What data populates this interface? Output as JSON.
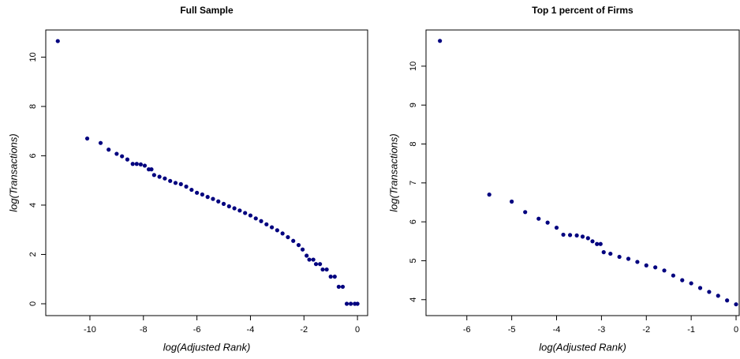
{
  "chart_data": [
    {
      "type": "scatter",
      "title": "Full Sample",
      "xlabel": "log(Adjusted Rank)",
      "ylabel": "log(Transactions)",
      "color": "#00007f",
      "xlim": [
        -11.65,
        0.38
      ],
      "ylim": [
        -0.48,
        11.1
      ],
      "xticks": [
        -10,
        -8,
        -6,
        -4,
        -2,
        0
      ],
      "yticks": [
        0,
        2,
        4,
        6,
        8,
        10
      ],
      "x": [
        -11.2,
        -10.1,
        -9.6,
        -9.3,
        -9.0,
        -8.8,
        -8.6,
        -8.4,
        -8.25,
        -8.1,
        -7.95,
        -7.8,
        -7.7,
        -7.6,
        -7.4,
        -7.2,
        -7.0,
        -6.8,
        -6.6,
        -6.4,
        -6.2,
        -6.0,
        -5.8,
        -5.6,
        -5.4,
        -5.2,
        -5.0,
        -4.8,
        -4.6,
        -4.4,
        -4.2,
        -4.0,
        -3.8,
        -3.6,
        -3.4,
        -3.2,
        -3.0,
        -2.8,
        -2.6,
        -2.4,
        -2.2,
        -2.05,
        -1.9,
        -1.8,
        -1.65,
        -1.55,
        -1.4,
        -1.3,
        -1.15,
        -1.0,
        -0.85,
        -0.7,
        -0.55,
        -0.4,
        -0.25,
        -0.1,
        0
      ],
      "y": [
        10.65,
        6.7,
        6.52,
        6.25,
        6.08,
        5.98,
        5.85,
        5.67,
        5.67,
        5.65,
        5.6,
        5.45,
        5.45,
        5.22,
        5.15,
        5.08,
        4.98,
        4.9,
        4.85,
        4.75,
        4.62,
        4.5,
        4.43,
        4.33,
        4.25,
        4.15,
        4.05,
        3.95,
        3.87,
        3.78,
        3.68,
        3.58,
        3.46,
        3.35,
        3.22,
        3.1,
        2.98,
        2.85,
        2.7,
        2.55,
        2.38,
        2.2,
        1.95,
        1.79,
        1.79,
        1.61,
        1.61,
        1.39,
        1.39,
        1.1,
        1.1,
        0.69,
        0.69,
        0,
        0,
        0,
        0
      ]
    },
    {
      "type": "scatter",
      "title": "Top 1 percent of Firms",
      "xlabel": "log(Adjusted Rank)",
      "ylabel": "log(Transactions)",
      "color": "#00007f",
      "xlim": [
        -6.91,
        0.07
      ],
      "ylim": [
        3.59,
        10.93
      ],
      "xticks": [
        -6,
        -5,
        -4,
        -3,
        -2,
        -1,
        0
      ],
      "yticks": [
        4,
        5,
        6,
        7,
        8,
        9,
        10
      ],
      "x": [
        -6.6,
        -5.5,
        -5.0,
        -4.7,
        -4.4,
        -4.2,
        -4.0,
        -3.85,
        -3.7,
        -3.55,
        -3.42,
        -3.3,
        -3.2,
        -3.1,
        -3.02,
        -2.95,
        -2.8,
        -2.6,
        -2.4,
        -2.2,
        -2.0,
        -1.8,
        -1.6,
        -1.4,
        -1.2,
        -1.0,
        -0.8,
        -0.6,
        -0.4,
        -0.2,
        0
      ],
      "y": [
        10.65,
        6.7,
        6.52,
        6.25,
        6.08,
        5.98,
        5.85,
        5.67,
        5.66,
        5.65,
        5.62,
        5.58,
        5.5,
        5.43,
        5.43,
        5.22,
        5.18,
        5.1,
        5.05,
        4.97,
        4.88,
        4.83,
        4.75,
        4.62,
        4.5,
        4.42,
        4.3,
        4.2,
        4.1,
        3.98,
        3.88
      ]
    }
  ]
}
